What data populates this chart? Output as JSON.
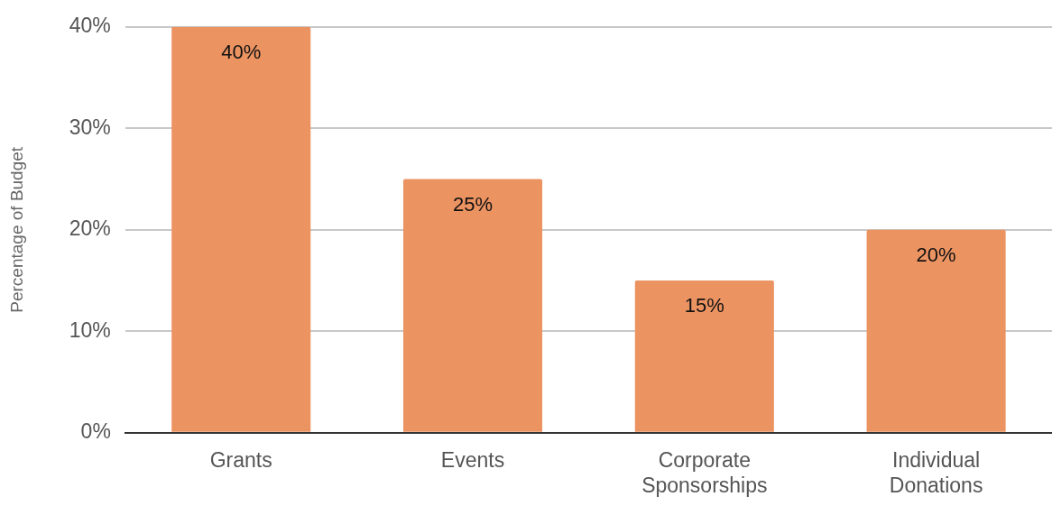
{
  "chart_data": {
    "type": "bar",
    "ylabel": "Percentage of Budget",
    "categories": [
      "Grants",
      "Events",
      "Corporate Sponsorships",
      "Individual Donations"
    ],
    "values": [
      40,
      25,
      15,
      20
    ],
    "color": "#ec9362",
    "value_labels": [
      "40%",
      "25%",
      "15%",
      "20%"
    ],
    "ylim": [
      0,
      40
    ],
    "yticks": [
      {
        "value": 0,
        "label": "0%"
      },
      {
        "value": 10,
        "label": "10%"
      },
      {
        "value": 20,
        "label": "20%"
      },
      {
        "value": 30,
        "label": "30%"
      },
      {
        "value": 40,
        "label": "40%"
      }
    ],
    "grid": "y",
    "legend": false
  }
}
